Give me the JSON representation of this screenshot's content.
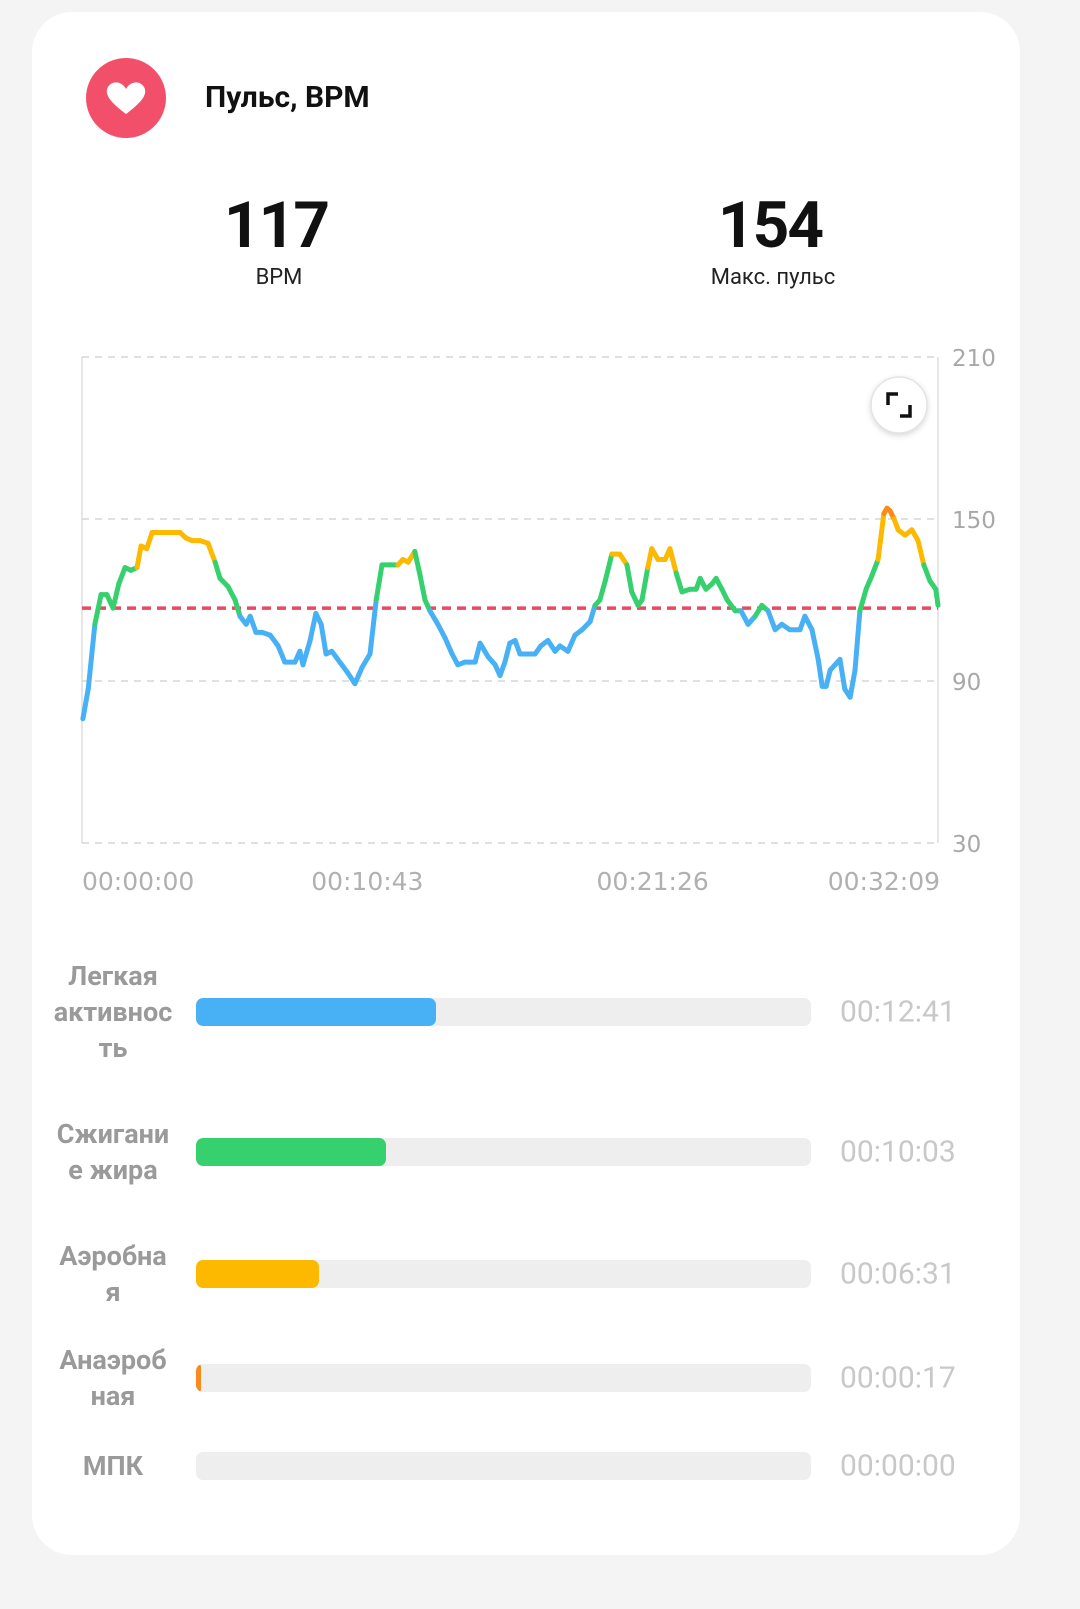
{
  "header": {
    "title": "Пульс, BPM"
  },
  "stats": [
    {
      "value": 117,
      "label": "BPM"
    },
    {
      "value": 154,
      "label": "Макс. пульс"
    }
  ],
  "chart_data": [
    {
      "type": "line",
      "x": [
        2,
        14,
        29,
        43,
        56,
        70,
        83,
        97,
        110,
        124,
        133,
        146,
        158,
        176,
        198,
        221,
        234,
        248,
        266,
        284,
        300,
        311,
        329,
        345,
        356,
        370,
        379,
        392,
        406,
        424,
        442,
        457,
        480,
        491,
        498,
        514,
        527,
        539,
        550,
        563,
        581,
        599,
        615,
        631,
        649,
        663,
        676,
        694,
        712,
        723,
        735,
        750,
        762,
        773,
        784,
        802,
        818,
        834,
        847,
        863,
        886,
        897,
        915,
        931,
        942,
        953,
        964,
        976,
        987,
        1005,
        1021,
        1034,
        1050,
        1066,
        1077,
        1095,
        1111,
        1127,
        1145,
        1156,
        1167,
        1179,
        1194,
        1212,
        1228,
        1239,
        1253,
        1262,
        1275,
        1284,
        1298,
        1314,
        1325,
        1339,
        1352,
        1370,
        1384,
        1393,
        1406,
        1420,
        1429,
        1442,
        1454,
        1472,
        1485,
        1501,
        1517,
        1532,
        1546,
        1562,
        1577,
        1595,
        1618,
        1629,
        1645,
        1659,
        1668,
        1677,
        1686,
        1697,
        1708,
        1719,
        1731,
        1742,
        1753,
        1767,
        1780,
        1794,
        1807,
        1814,
        1821,
        1830,
        1839,
        1855,
        1870,
        1884,
        1897,
        1911,
        1924,
        1929
      ],
      "series": [
        {
          "color": "#48b1f6",
          "zone_colors": [
            {
              "from": 116,
              "color": "#36d06e"
            },
            {
              "from": 134,
              "color": "#fdb900"
            },
            {
              "from": 151,
              "color": "#fb8a1c"
            }
          ],
          "values": [
            76,
            87,
            111,
            122,
            122,
            117,
            126,
            132,
            131,
            132,
            140,
            139,
            145,
            145,
            145,
            145,
            143,
            142,
            142,
            141,
            134,
            128,
            125,
            120,
            114,
            111,
            114,
            108,
            108,
            107,
            103,
            97,
            97,
            101,
            96,
            105,
            115,
            111,
            100,
            101,
            97,
            93,
            89,
            95,
            100,
            120,
            133,
            133,
            133,
            135,
            134,
            138,
            129,
            120,
            116,
            111,
            106,
            100,
            96,
            97,
            97,
            104,
            99,
            96,
            92,
            97,
            104,
            105,
            100,
            100,
            100,
            103,
            105,
            101,
            103,
            101,
            107,
            109,
            112,
            118,
            120,
            127,
            137,
            137,
            133,
            123,
            118,
            120,
            132,
            139,
            135,
            135,
            139,
            130,
            123,
            124,
            124,
            128,
            124,
            126,
            128,
            124,
            120,
            116,
            116,
            111,
            114,
            118,
            116,
            109,
            111,
            109,
            109,
            114,
            109,
            98,
            88,
            88,
            94,
            96,
            98,
            87,
            84,
            94,
            116,
            124,
            129,
            135,
            152,
            154,
            153,
            150,
            146,
            144,
            146,
            142,
            133,
            127,
            124,
            118
          ]
        }
      ],
      "xlim": [
        0,
        1929
      ],
      "xticks": [
        {
          "value": 0,
          "label": "00:00:00"
        },
        {
          "value": 643,
          "label": "00:10:43"
        },
        {
          "value": 1286,
          "label": "00:21:26"
        },
        {
          "value": 1929,
          "label": "00:32:09"
        }
      ],
      "ylim": [
        30,
        210
      ],
      "yticks": [
        30,
        90,
        150,
        210
      ],
      "grid": true
    },
    {
      "type": "bar",
      "orientation": "horizontal",
      "categories": [
        "Легкая активность",
        "Сжигание жира",
        "Аэробная",
        "Анаэробная",
        "МПК"
      ],
      "values": [
        761,
        603,
        391,
        17,
        0
      ],
      "value_labels": [
        "00:12:41",
        "00:10:03",
        "00:06:31",
        "00:00:17",
        "00:00:00"
      ],
      "colors": [
        "#48b1f6",
        "#36d06e",
        "#fdb900",
        "#fb8a1c",
        "#e84a5f"
      ],
      "xlim": [
        0,
        1950
      ]
    }
  ]
}
